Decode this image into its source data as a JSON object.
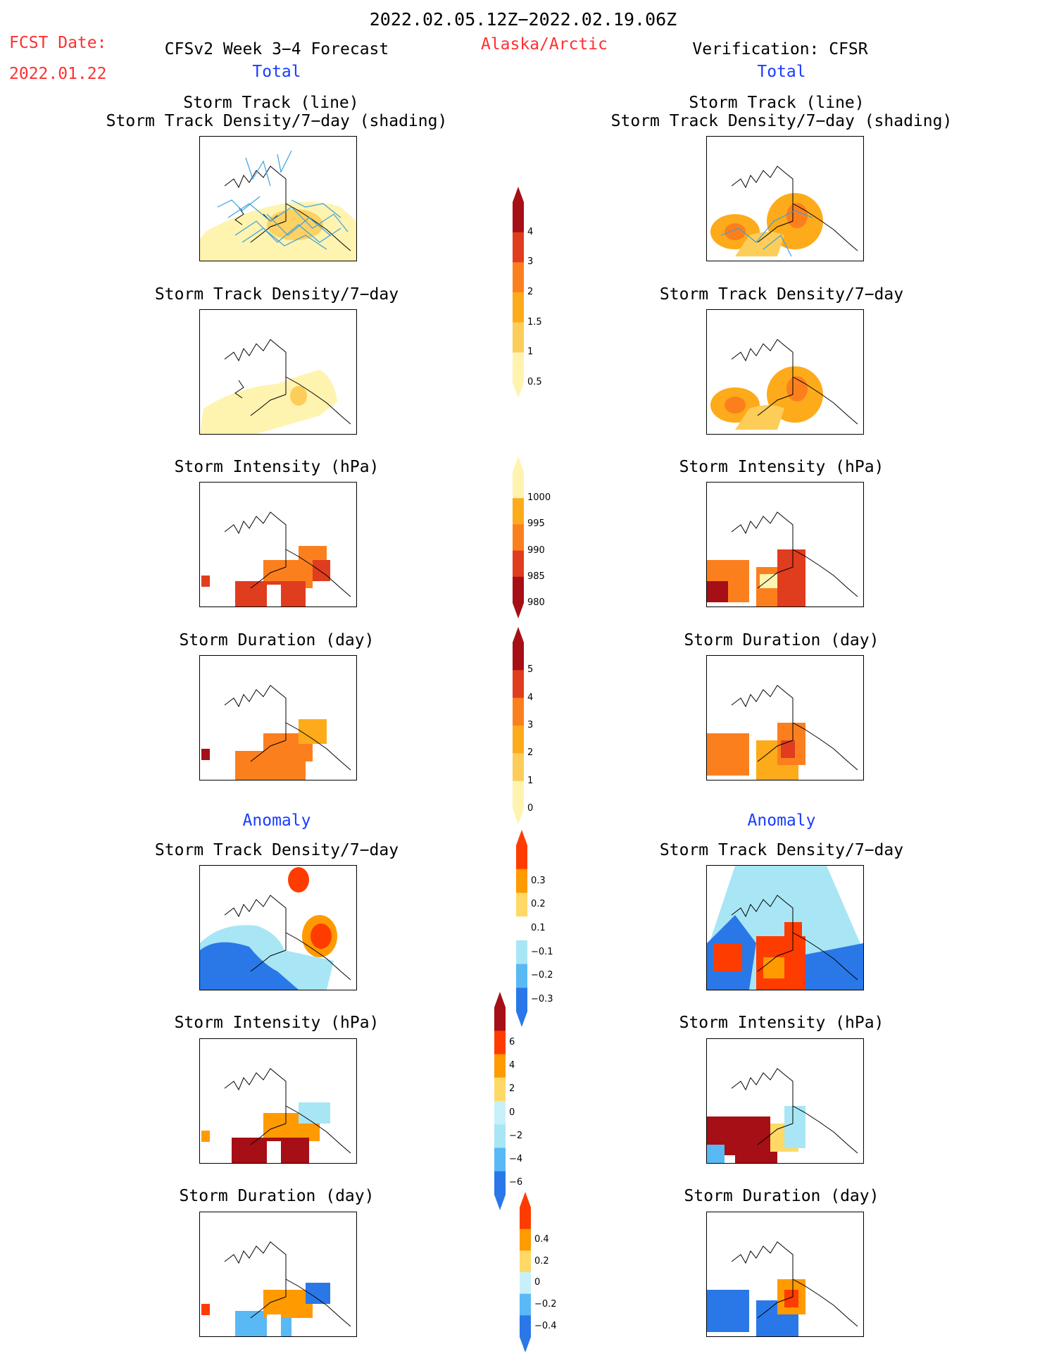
{
  "header": {
    "date_range": "2022.02.05.12Z−2022.02.19.06Z",
    "fcst_label": "FCST Date:",
    "fcst_date": "2022.01.22",
    "model_title": "CFSv2 Week 3−4 Forecast",
    "region": "Alaska/Arctic",
    "verification": "Verification: CFSR",
    "left_section": "Total",
    "right_section": "Total"
  },
  "anomaly": {
    "left": "Anomaly",
    "right": "Anomaly"
  },
  "titles": {
    "track_line": "Storm Track (line)",
    "track_shading": "Storm Track Density/7−day (shading)",
    "density": "Storm Track Density/7−day",
    "intensity": "Storm Intensity (hPa)",
    "duration": "Storm Duration (day)"
  },
  "colorbars": {
    "density_total": {
      "ticks": [
        "4",
        "3",
        "2",
        "1.5",
        "1",
        "0.5"
      ],
      "colors": [
        "#a50f15",
        "#e03c1e",
        "#fc7f1e",
        "#fdab1a",
        "#fdcd5a",
        "#fff3b0"
      ]
    },
    "intensity_total": {
      "ticks": [
        "1000",
        "995",
        "990",
        "985",
        "980"
      ],
      "colors": [
        "#fff3b0",
        "#fdab1a",
        "#fc7f1e",
        "#e03c1e",
        "#a50f15"
      ]
    },
    "duration_total": {
      "ticks": [
        "5",
        "4",
        "3",
        "2",
        "1",
        "0"
      ],
      "colors": [
        "#a50f15",
        "#e03c1e",
        "#fc7f1e",
        "#fdab1a",
        "#fdcd5a",
        "#fff3b0"
      ]
    },
    "density_anom": {
      "ticks": [
        "0.3",
        "0.2",
        "0.1",
        "−0.1",
        "−0.2",
        "−0.3"
      ],
      "colors": [
        "#ff3c00",
        "#ff9a00",
        "#ffd966",
        "#ffffff",
        "#a8e6f5",
        "#59b9f5",
        "#2a78e8"
      ]
    },
    "intensity_anom": {
      "ticks": [
        "6",
        "4",
        "2",
        "0",
        "−2",
        "−4",
        "−6"
      ],
      "colors": [
        "#a50f15",
        "#ff3c00",
        "#ff9a00",
        "#ffd966",
        "#c8f0fa",
        "#a8e6f5",
        "#59b9f5",
        "#2a78e8"
      ]
    },
    "duration_anom": {
      "ticks": [
        "0.4",
        "0.2",
        "0",
        "−0.2",
        "−0.4"
      ],
      "colors": [
        "#ff3c00",
        "#ff9a00",
        "#ffd966",
        "#c8f0fa",
        "#59b9f5",
        "#2a78e8"
      ]
    }
  }
}
